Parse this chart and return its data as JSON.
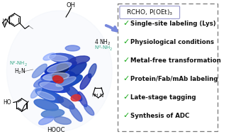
{
  "background_color": "#ffffff",
  "box_title": "RCHO, P(OEt)$_3$",
  "checklist": [
    "Single-site labeling (Lys)",
    "Physiological conditions",
    "Metal-free transformation",
    "Protein/Fab/mAb labeling",
    "Late-stage tagging",
    "Synthesis of ADC"
  ],
  "check_color": "#1aaa1a",
  "box_border_color": "#777777",
  "box_title_border": "#aaaacc",
  "teal_color": "#3aaa8a",
  "arrow_color": "#7788dd",
  "figsize": [
    3.33,
    1.89
  ],
  "dpi": 100,
  "protein_helices": [
    [
      88,
      108,
      52,
      16,
      -5,
      "#1133cc",
      1.0
    ],
    [
      82,
      122,
      48,
      15,
      10,
      "#2244cc",
      1.0
    ],
    [
      92,
      95,
      50,
      15,
      -15,
      "#1133bb",
      1.0
    ],
    [
      75,
      135,
      45,
      14,
      20,
      "#2255cc",
      0.95
    ],
    [
      105,
      115,
      42,
      14,
      -20,
      "#1144bb",
      0.95
    ],
    [
      95,
      82,
      40,
      13,
      5,
      "#3355cc",
      0.9
    ],
    [
      115,
      100,
      38,
      13,
      -35,
      "#1133aa",
      0.9
    ],
    [
      70,
      148,
      38,
      13,
      15,
      "#3366cc",
      0.85
    ],
    [
      110,
      130,
      36,
      12,
      40,
      "#2244bb",
      0.85
    ],
    [
      80,
      160,
      35,
      12,
      -5,
      "#4477cc",
      0.8
    ],
    [
      120,
      85,
      32,
      11,
      -10,
      "#2233aa",
      0.8
    ],
    [
      65,
      115,
      30,
      11,
      -25,
      "#5577dd",
      0.75
    ],
    [
      100,
      145,
      30,
      11,
      30,
      "#3355bb",
      0.8
    ],
    [
      115,
      160,
      28,
      10,
      50,
      "#4466cc",
      0.75
    ],
    [
      60,
      100,
      28,
      10,
      -40,
      "#6688dd",
      0.7
    ],
    [
      130,
      115,
      26,
      10,
      -55,
      "#1122aa",
      0.75
    ],
    [
      95,
      170,
      26,
      10,
      10,
      "#5577cc",
      0.7
    ],
    [
      70,
      170,
      24,
      9,
      -20,
      "#6688ee",
      0.65
    ],
    [
      125,
      140,
      24,
      9,
      60,
      "#2233bb",
      0.7
    ],
    [
      55,
      130,
      22,
      9,
      -45,
      "#7799ee",
      0.6
    ],
    [
      140,
      100,
      22,
      9,
      -65,
      "#1133aa",
      0.65
    ],
    [
      110,
      68,
      22,
      8,
      0,
      "#4466dd",
      0.6
    ],
    [
      75,
      80,
      20,
      8,
      -20,
      "#7799ff",
      0.55
    ],
    [
      135,
      155,
      20,
      8,
      45,
      "#3355cc",
      0.6
    ]
  ],
  "protein_white_overlays": [
    [
      85,
      108,
      40,
      10,
      -5,
      "#c8d8f8",
      0.55
    ],
    [
      90,
      95,
      38,
      10,
      -15,
      "#d0dcf8",
      0.5
    ],
    [
      78,
      122,
      36,
      10,
      10,
      "#c8d4f8",
      0.5
    ],
    [
      100,
      115,
      32,
      9,
      -20,
      "#ccd8f8",
      0.45
    ],
    [
      88,
      82,
      30,
      8,
      5,
      "#d8e0fc",
      0.45
    ],
    [
      70,
      135,
      28,
      8,
      20,
      "#d0dcfc",
      0.45
    ]
  ],
  "protein_red_spots": [
    [
      88,
      112,
      16,
      10,
      15,
      "#cc2222",
      0.9
    ],
    [
      115,
      138,
      15,
      9,
      -10,
      "#dd3333",
      0.85
    ]
  ],
  "protein_dark_core": [
    [
      90,
      108,
      22,
      14,
      -5,
      "#111133",
      0.75
    ],
    [
      95,
      96,
      18,
      12,
      -10,
      "#112244",
      0.6
    ]
  ]
}
